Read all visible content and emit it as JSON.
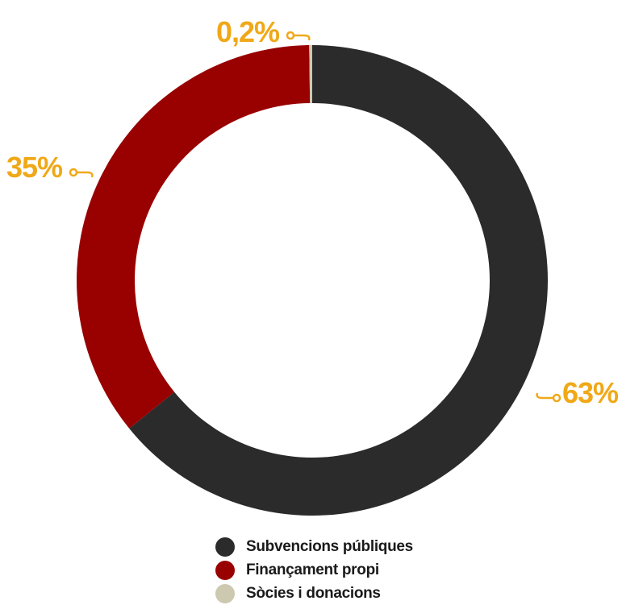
{
  "chart_data": {
    "type": "pie",
    "categories": [
      "Subvencions públiques",
      "Finançament propi",
      "Sòcies i donacions"
    ],
    "values": [
      63,
      35,
      0.2
    ],
    "data_labels": [
      "63%",
      "35%",
      "0,2%"
    ],
    "colors": [
      "#2b2b2b",
      "#990000",
      "#cdc8b0"
    ],
    "label_color": "#f0a818",
    "connector_icon": "key-connector-icon",
    "legend_position": "bottom-center",
    "donut": true
  }
}
